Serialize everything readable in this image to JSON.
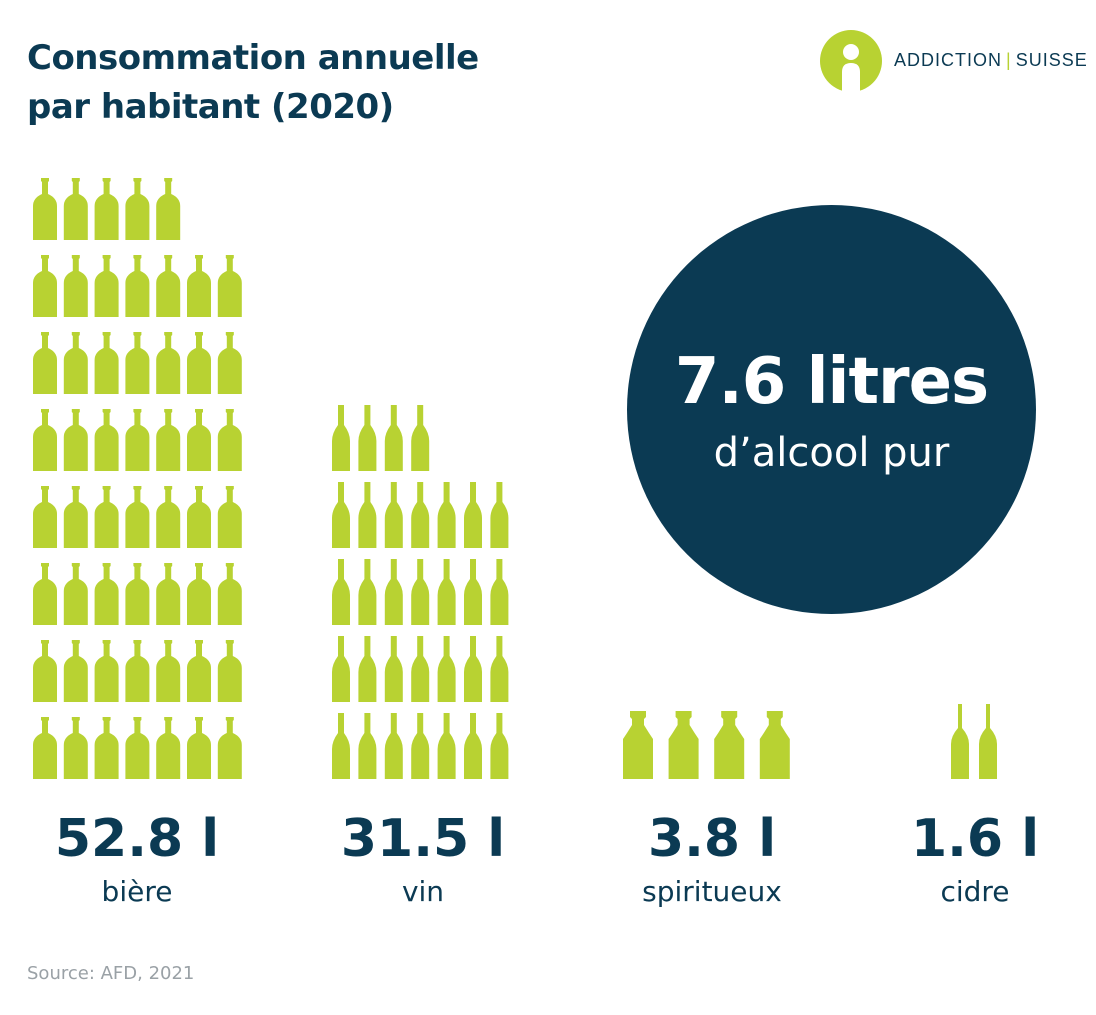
{
  "title": {
    "line1": "Consommation annuelle",
    "line2": "par habitant (2020)"
  },
  "logo": {
    "left": "ADDICTION",
    "separator": "|",
    "right": "SUISSE"
  },
  "total": {
    "value": "7.6 litres",
    "label": "d’alcool pur"
  },
  "colors": {
    "bottle": "#b8d232",
    "navy": "#0b3a53",
    "source": "#9aa1a6"
  },
  "chart_data": {
    "type": "pictogram",
    "unit": "l",
    "categories": [
      "bière",
      "vin",
      "spiritueux",
      "cidre"
    ],
    "values": [
      52.8,
      31.5,
      3.8,
      1.6
    ],
    "value_labels": [
      "52.8 l",
      "31.5 l",
      "3.8 l",
      "1.6 l"
    ],
    "icon_counts": [
      54,
      32,
      4,
      2
    ],
    "icons": [
      "beer-bottle-icon",
      "wine-bottle-icon",
      "spirits-bottle-icon",
      "cider-bottle-icon"
    ]
  },
  "source": "Source: AFD, 2021"
}
